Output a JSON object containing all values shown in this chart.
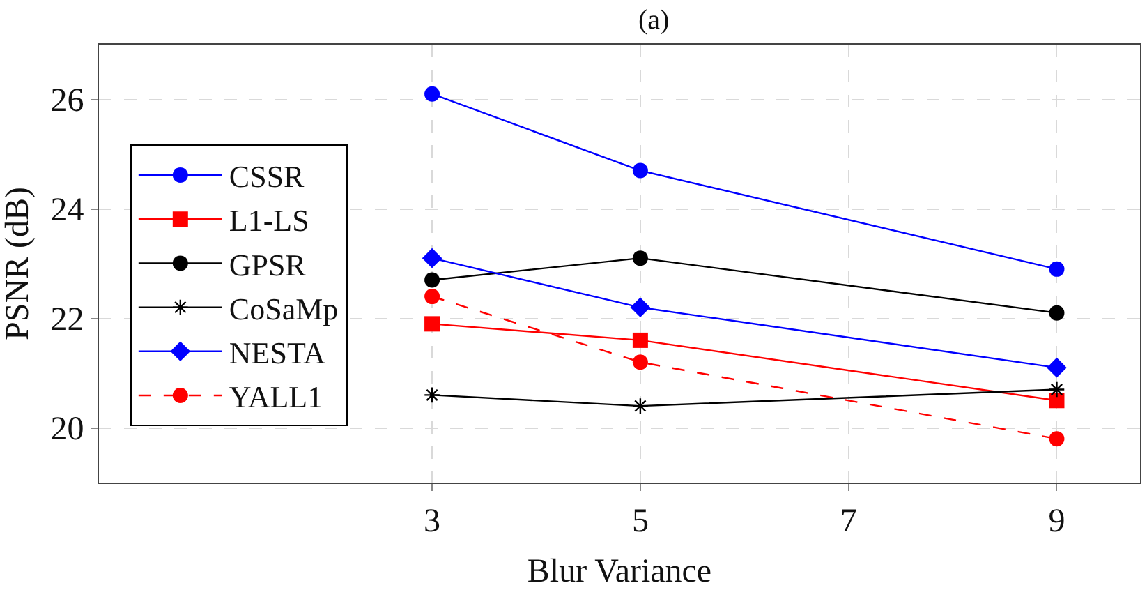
{
  "chart_data": {
    "type": "line",
    "title": "(a)",
    "xlabel": "Blur Variance",
    "ylabel": "PSNR (dB)",
    "x": [
      3,
      5,
      9
    ],
    "series": [
      {
        "name": "CSSR",
        "color": "#0000ff",
        "marker": "circle",
        "line_style": "solid",
        "values": [
          26.1,
          24.7,
          22.9
        ]
      },
      {
        "name": "L1-LS",
        "color": "#ff0000",
        "marker": "square",
        "line_style": "solid",
        "values": [
          21.9,
          21.6,
          20.5
        ]
      },
      {
        "name": "GPSR",
        "color": "#000000",
        "marker": "circle",
        "line_style": "solid",
        "values": [
          22.7,
          23.1,
          22.1
        ]
      },
      {
        "name": "CoSaMp",
        "color": "#000000",
        "marker": "cross",
        "line_style": "solid",
        "values": [
          20.6,
          20.4,
          20.7
        ]
      },
      {
        "name": "NESTA",
        "color": "#0000ff",
        "marker": "diamond",
        "line_style": "solid",
        "values": [
          23.1,
          22.2,
          21.1
        ]
      },
      {
        "name": "YALL1",
        "color": "#ff0000",
        "marker": "circle",
        "line_style": "dashed",
        "values": [
          22.4,
          21.2,
          19.8
        ]
      }
    ],
    "xlim": [
      -0.2,
      9.8
    ],
    "xticks": [
      3,
      5,
      7,
      9
    ],
    "ylim": [
      19,
      27
    ],
    "yticks": [
      20,
      22,
      24,
      26
    ],
    "grid": true,
    "legend": "left"
  }
}
